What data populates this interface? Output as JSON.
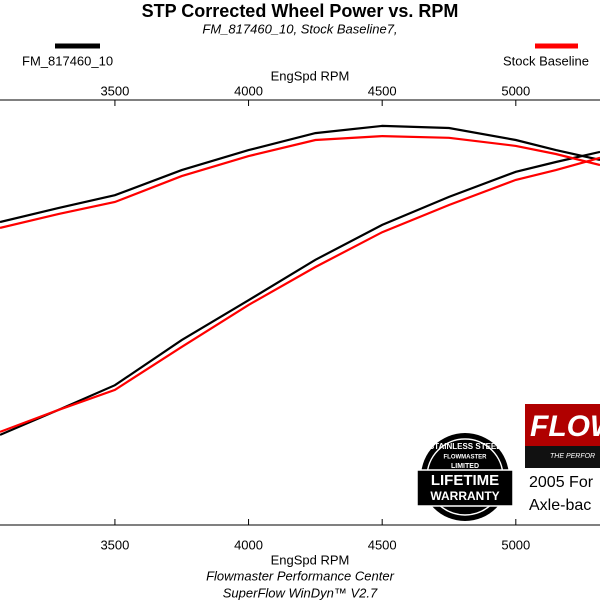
{
  "chart_data": {
    "type": "line",
    "title": "STP Corrected Wheel Power vs. RPM",
    "subtitle": "FM_817460_10, Stock Baseline7,",
    "x_label": "EngSpd  RPM",
    "xlim": [
      3070,
      5315
    ],
    "xticks": [
      3500,
      4000,
      4500,
      5000
    ],
    "ylim": [
      0,
      100
    ],
    "x": [
      3070,
      3290,
      3500,
      3750,
      4000,
      4250,
      4500,
      4750,
      5000,
      5150,
      5315
    ],
    "series": [
      {
        "name": "FM_817460_10",
        "color": "#000000",
        "values": [
          71.3,
          74.6,
          77.6,
          83.5,
          88.2,
          92.2,
          93.9,
          93.4,
          90.6,
          88.2,
          85.9
        ],
        "values_b": [
          21.2,
          27.1,
          32.9,
          43.5,
          52.9,
          62.4,
          70.6,
          77.2,
          83.1,
          85.4,
          87.8
        ]
      },
      {
        "name": "Stock Baseline",
        "color": "#ff0000",
        "values": [
          69.9,
          73.2,
          76.0,
          82.1,
          86.8,
          90.6,
          91.5,
          91.1,
          89.2,
          87.3,
          84.7
        ],
        "values_b": [
          21.9,
          27.1,
          31.8,
          41.9,
          51.8,
          60.7,
          68.9,
          75.3,
          81.2,
          83.5,
          86.4
        ]
      }
    ],
    "footer": [
      "Flowmaster Performance Center",
      "SuperFlow WinDyn™ V2.7"
    ],
    "logo": [
      "FLOW",
      "THE PERFOR"
    ],
    "badge": [
      "STAINLESS STEEL",
      "FLOWMASTER",
      "LIMITED",
      "LIFETIME",
      "WARRANTY"
    ],
    "note": [
      "2005 For",
      "Axle-bac"
    ]
  }
}
